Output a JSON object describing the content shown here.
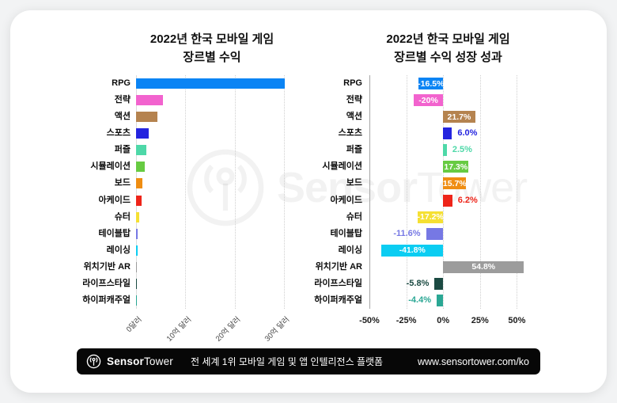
{
  "watermark": {
    "brand_bold": "Sensor",
    "brand_light": "Tower"
  },
  "chart_data": [
    {
      "type": "bar",
      "orientation": "horizontal",
      "title": "2022년 한국 모바일 게임 장르별 수익",
      "title_line1": "2022년 한국 모바일 게임",
      "title_line2": "장르별 수익",
      "value_unit": "억 달러",
      "xlim": [
        0,
        31
      ],
      "grid": "vertical-dotted",
      "legend": "none",
      "categories": [
        "RPG",
        "전략",
        "액션",
        "스포츠",
        "퍼즐",
        "시뮬레이션",
        "보드",
        "아케이드",
        "슈터",
        "테이블탑",
        "레이싱",
        "위치기반 AR",
        "라이프스타일",
        "하이퍼캐주얼"
      ],
      "values": [
        30.2,
        5.4,
        4.3,
        2.5,
        2.1,
        1.7,
        1.25,
        1.05,
        0.6,
        0.32,
        0.3,
        0.15,
        0.1,
        0.05
      ],
      "colors": [
        "#0b84f4",
        "#f263ce",
        "#b5834f",
        "#2424df",
        "#4ed8a8",
        "#67cb42",
        "#ef8d12",
        "#ee2419",
        "#f5e033",
        "#7678e4",
        "#0bcdf2",
        "#9c9c9c",
        "#1b4a42",
        "#2aa794"
      ],
      "x_ticks": [
        {
          "v": 0,
          "label": "0달러"
        },
        {
          "v": 10,
          "label": "10억 달러"
        },
        {
          "v": 20,
          "label": "20억 달러"
        },
        {
          "v": 30,
          "label": "30억 달러"
        }
      ]
    },
    {
      "type": "bar",
      "orientation": "horizontal",
      "title": "2022년 한국 모바일 게임 장르별 수익 성장 성과",
      "title_line1": "2022년 한국 모바일 게임",
      "title_line2": "장르별 수익 성장 성과",
      "value_unit": "%",
      "xlim": [
        -50,
        75
      ],
      "grid": "vertical-dotted",
      "legend": "none",
      "categories": [
        "RPG",
        "전략",
        "액션",
        "스포츠",
        "퍼즐",
        "시뮬레이션",
        "보드",
        "아케이드",
        "슈터",
        "테이블탑",
        "레이싱",
        "위치기반 AR",
        "라이프스타일",
        "하이퍼캐주얼"
      ],
      "values": [
        -16.5,
        -20,
        21.7,
        6.0,
        2.5,
        17.3,
        15.7,
        6.2,
        -17.2,
        -11.6,
        -41.8,
        54.8,
        -5.8,
        -4.4
      ],
      "labels": [
        "-16.5%",
        "-20%",
        "21.7%",
        "6.0%",
        "2.5%",
        "17.3%",
        "15.7%",
        "6.2%",
        "-17.2%",
        "-11.6%",
        "-41.8%",
        "54.8%",
        "-5.8%",
        "-4.4%"
      ],
      "colors": [
        "#0b84f4",
        "#f263ce",
        "#b5834f",
        "#2424df",
        "#4ed8a8",
        "#67cb42",
        "#ef8d12",
        "#ee2419",
        "#f5e033",
        "#7678e4",
        "#0bcdf2",
        "#9c9c9c",
        "#1b4a42",
        "#2aa794"
      ],
      "x_ticks": [
        {
          "v": -50,
          "label": "-50%"
        },
        {
          "v": -25,
          "label": "-25%"
        },
        {
          "v": 0,
          "label": "0%"
        },
        {
          "v": 25,
          "label": "25%"
        },
        {
          "v": 50,
          "label": "50%"
        }
      ]
    }
  ],
  "footer": {
    "brand_bold": "Sensor",
    "brand_light": "Tower",
    "tagline": "전 세계 1위 모바일 게임 및 앱 인텔리전스 플랫폼",
    "url": "www.sensortower.com/ko"
  }
}
